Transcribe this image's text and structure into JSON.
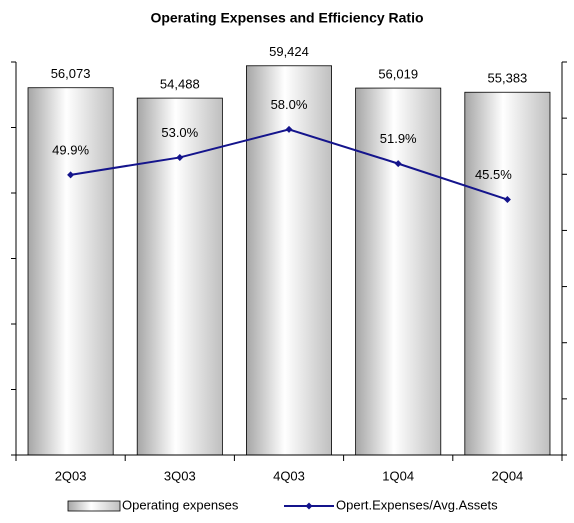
{
  "chart_data": {
    "type": "bar-line",
    "title": "Operating Expenses  and Efficiency Ratio",
    "categories": [
      "2Q03",
      "3Q03",
      "4Q03",
      "1Q04",
      "2Q04"
    ],
    "series": [
      {
        "name": "Operating expenses",
        "type": "bar",
        "color": "#d9d9d9",
        "values": [
          56073,
          54488,
          59424,
          56019,
          55383
        ],
        "value_labels": [
          "56,073",
          "54,488",
          "59,424",
          "56,019",
          "55,383"
        ]
      },
      {
        "name": "Opert.Expenses/Avg.Assets",
        "type": "line",
        "axis": "y2",
        "color": "#14148c",
        "values": [
          49.9,
          53.0,
          58.0,
          51.9,
          45.5
        ],
        "value_labels": [
          "49.9%",
          "53.0%",
          "58.0%",
          "51.9%",
          "45.5%"
        ]
      }
    ],
    "ylim": [
      0,
      60000
    ],
    "yticks": [
      0,
      10000,
      20000,
      30000,
      40000,
      50000,
      60000
    ],
    "y2lim": [
      0,
      70
    ],
    "y2ticks": [
      0,
      10,
      20,
      30,
      40,
      50,
      60,
      70
    ],
    "grid": false,
    "legend": "bottom"
  }
}
